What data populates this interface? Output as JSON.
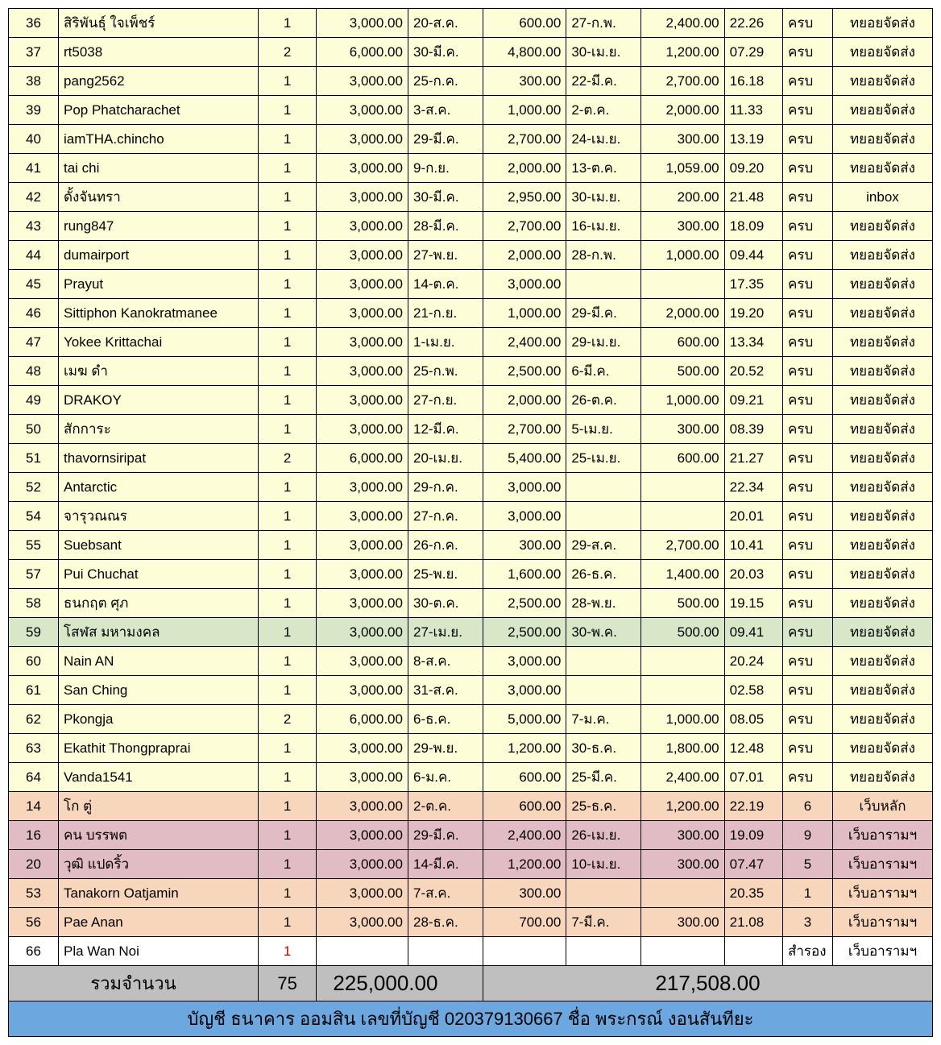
{
  "rows": [
    {
      "num": "36",
      "name": "สิริพันธุ์ ใจเพ็ชร์",
      "qty": "1",
      "amt1": "3,000.00",
      "date1": "20-ส.ค.",
      "amt2": "600.00",
      "date2": "27-ก.พ.",
      "amt3": "2,400.00",
      "time": "22.26",
      "status": "ครบ",
      "note": "ทยอยจัดส่ง",
      "bg": "bg-yellow"
    },
    {
      "num": "37",
      "name": "rt5038",
      "qty": "2",
      "amt1": "6,000.00",
      "date1": "30-มี.ค.",
      "amt2": "4,800.00",
      "date2": "30-เม.ย.",
      "amt3": "1,200.00",
      "time": "07.29",
      "status": "ครบ",
      "note": "ทยอยจัดส่ง",
      "bg": "bg-yellow"
    },
    {
      "num": "38",
      "name": "pang2562",
      "qty": "1",
      "amt1": "3,000.00",
      "date1": "25-ก.ค.",
      "amt2": "300.00",
      "date2": "22-มี.ค.",
      "amt3": "2,700.00",
      "time": "16.18",
      "status": "ครบ",
      "note": "ทยอยจัดส่ง",
      "bg": "bg-yellow"
    },
    {
      "num": "39",
      "name": "Pop Phatcharachet",
      "qty": "1",
      "amt1": "3,000.00",
      "date1": "3-ส.ค.",
      "amt2": "1,000.00",
      "date2": "2-ต.ค.",
      "amt3": "2,000.00",
      "time": "11.33",
      "status": "ครบ",
      "note": "ทยอยจัดส่ง",
      "bg": "bg-yellow"
    },
    {
      "num": "40",
      "name": "iamTHA.chincho",
      "qty": "1",
      "amt1": "3,000.00",
      "date1": "29-มี.ค.",
      "amt2": "2,700.00",
      "date2": "24-เม.ย.",
      "amt3": "300.00",
      "time": "13.19",
      "status": "ครบ",
      "note": "ทยอยจัดส่ง",
      "bg": "bg-yellow"
    },
    {
      "num": "41",
      "name": "tai chi",
      "qty": "1",
      "amt1": "3,000.00",
      "date1": "9-ก.ย.",
      "amt2": "2,000.00",
      "date2": "13-ต.ค.",
      "amt3": "1,059.00",
      "time": "09.20",
      "status": "ครบ",
      "note": "ทยอยจัดส่ง",
      "bg": "bg-yellow"
    },
    {
      "num": "42",
      "name": "ดั้งจันทรา",
      "qty": "1",
      "amt1": "3,000.00",
      "date1": "30-มี.ค.",
      "amt2": "2,950.00",
      "date2": "30-เม.ย.",
      "amt3": "200.00",
      "time": "21.48",
      "status": "ครบ",
      "note": "inbox",
      "bg": "bg-yellow"
    },
    {
      "num": "43",
      "name": "rung847",
      "qty": "1",
      "amt1": "3,000.00",
      "date1": "28-มี.ค.",
      "amt2": "2,700.00",
      "date2": "16-เม.ย.",
      "amt3": "300.00",
      "time": "18.09",
      "status": "ครบ",
      "note": "ทยอยจัดส่ง",
      "bg": "bg-yellow"
    },
    {
      "num": "44",
      "name": "dumairport",
      "qty": "1",
      "amt1": "3,000.00",
      "date1": "27-พ.ย.",
      "amt2": "2,000.00",
      "date2": "28-ก.พ.",
      "amt3": "1,000.00",
      "time": "09.44",
      "status": "ครบ",
      "note": "ทยอยจัดส่ง",
      "bg": "bg-yellow"
    },
    {
      "num": "45",
      "name": "Prayut",
      "qty": "1",
      "amt1": "3,000.00",
      "date1": "14-ต.ค.",
      "amt2": "3,000.00",
      "date2": "",
      "amt3": "",
      "time": "17.35",
      "status": "ครบ",
      "note": "ทยอยจัดส่ง",
      "bg": "bg-yellow"
    },
    {
      "num": "46",
      "name": "Sittiphon Kanokratmanee",
      "qty": "1",
      "amt1": "3,000.00",
      "date1": "21-ก.ย.",
      "amt2": "1,000.00",
      "date2": "29-มี.ค.",
      "amt3": "2,000.00",
      "time": "19.20",
      "status": "ครบ",
      "note": "ทยอยจัดส่ง",
      "bg": "bg-yellow"
    },
    {
      "num": "47",
      "name": "Yokee Krittachai",
      "qty": "1",
      "amt1": "3,000.00",
      "date1": "1-เม.ย.",
      "amt2": "2,400.00",
      "date2": "29-เม.ย.",
      "amt3": "600.00",
      "time": "13.34",
      "status": "ครบ",
      "note": "ทยอยจัดส่ง",
      "bg": "bg-yellow"
    },
    {
      "num": "48",
      "name": "เมฆ ดำ",
      "qty": "1",
      "amt1": "3,000.00",
      "date1": "25-ก.พ.",
      "amt2": "2,500.00",
      "date2": "6-มี.ค.",
      "amt3": "500.00",
      "time": "20.52",
      "status": "ครบ",
      "note": "ทยอยจัดส่ง",
      "bg": "bg-yellow"
    },
    {
      "num": "49",
      "name": "DRAKOY",
      "qty": "1",
      "amt1": "3,000.00",
      "date1": "27-ก.ย.",
      "amt2": "2,000.00",
      "date2": "26-ต.ค.",
      "amt3": "1,000.00",
      "time": "09.21",
      "status": "ครบ",
      "note": "ทยอยจัดส่ง",
      "bg": "bg-yellow"
    },
    {
      "num": "50",
      "name": "สักการะ",
      "qty": "1",
      "amt1": "3,000.00",
      "date1": "12-มี.ค.",
      "amt2": "2,700.00",
      "date2": "5-เม.ย.",
      "amt3": "300.00",
      "time": "08.39",
      "status": "ครบ",
      "note": "ทยอยจัดส่ง",
      "bg": "bg-yellow"
    },
    {
      "num": "51",
      "name": "thavornsiripat",
      "qty": "2",
      "amt1": "6,000.00",
      "date1": "20-เม.ย.",
      "amt2": "5,400.00",
      "date2": "25-เม.ย.",
      "amt3": "600.00",
      "time": "21.27",
      "status": "ครบ",
      "note": "ทยอยจัดส่ง",
      "bg": "bg-yellow"
    },
    {
      "num": "52",
      "name": "Antarctic",
      "qty": "1",
      "amt1": "3,000.00",
      "date1": "29-ก.ค.",
      "amt2": "3,000.00",
      "date2": "",
      "amt3": "",
      "time": "22.34",
      "status": "ครบ",
      "note": "ทยอยจัดส่ง",
      "bg": "bg-yellow"
    },
    {
      "num": "54",
      "name": "จารุวณณร",
      "qty": "1",
      "amt1": "3,000.00",
      "date1": "27-ก.ค.",
      "amt2": "3,000.00",
      "date2": "",
      "amt3": "",
      "time": "20.01",
      "status": "ครบ",
      "note": "ทยอยจัดส่ง",
      "bg": "bg-yellow"
    },
    {
      "num": "55",
      "name": "Suebsant",
      "qty": "1",
      "amt1": "3,000.00",
      "date1": "26-ก.ค.",
      "amt2": "300.00",
      "date2": "29-ส.ค.",
      "amt3": "2,700.00",
      "time": "10.41",
      "status": "ครบ",
      "note": "ทยอยจัดส่ง",
      "bg": "bg-yellow"
    },
    {
      "num": "57",
      "name": "Pui Chuchat",
      "qty": "1",
      "amt1": "3,000.00",
      "date1": "25-พ.ย.",
      "amt2": "1,600.00",
      "date2": "26-ธ.ค.",
      "amt3": "1,400.00",
      "time": "20.03",
      "status": "ครบ",
      "note": "ทยอยจัดส่ง",
      "bg": "bg-yellow"
    },
    {
      "num": "58",
      "name": "ธนกฤต ศุภ",
      "qty": "1",
      "amt1": "3,000.00",
      "date1": "30-ต.ค.",
      "amt2": "2,500.00",
      "date2": "28-พ.ย.",
      "amt3": "500.00",
      "time": "19.15",
      "status": "ครบ",
      "note": "ทยอยจัดส่ง",
      "bg": "bg-yellow"
    },
    {
      "num": "59",
      "name": "โสฬส มหามงคล",
      "qty": "1",
      "amt1": "3,000.00",
      "date1": "27-เม.ย.",
      "amt2": "2,500.00",
      "date2": "30-พ.ค.",
      "amt3": "500.00",
      "time": "09.41",
      "status": "ครบ",
      "note": "ทยอยจัดส่ง",
      "bg": "bg-green"
    },
    {
      "num": "60",
      "name": "Nain AN",
      "qty": "1",
      "amt1": "3,000.00",
      "date1": "8-ส.ค.",
      "amt2": "3,000.00",
      "date2": "",
      "amt3": "",
      "time": "20.24",
      "status": "ครบ",
      "note": "ทยอยจัดส่ง",
      "bg": "bg-yellow"
    },
    {
      "num": "61",
      "name": "San Ching",
      "qty": "1",
      "amt1": "3,000.00",
      "date1": "31-ส.ค.",
      "amt2": "3,000.00",
      "date2": "",
      "amt3": "",
      "time": "02.58",
      "status": "ครบ",
      "note": "ทยอยจัดส่ง",
      "bg": "bg-yellow"
    },
    {
      "num": "62",
      "name": "Pkongja",
      "qty": "2",
      "amt1": "6,000.00",
      "date1": "6-ธ.ค.",
      "amt2": "5,000.00",
      "date2": "7-ม.ค.",
      "amt3": "1,000.00",
      "time": "08.05",
      "status": "ครบ",
      "note": "ทยอยจัดส่ง",
      "bg": "bg-yellow"
    },
    {
      "num": "63",
      "name": "Ekathit Thongpraprai",
      "qty": "1",
      "amt1": "3,000.00",
      "date1": "29-พ.ย.",
      "amt2": "1,200.00",
      "date2": "30-ธ.ค.",
      "amt3": "1,800.00",
      "time": "12.48",
      "status": "ครบ",
      "note": "ทยอยจัดส่ง",
      "bg": "bg-yellow"
    },
    {
      "num": "64",
      "name": "Vanda1541",
      "qty": "1",
      "amt1": "3,000.00",
      "date1": "6-ม.ค.",
      "amt2": "600.00",
      "date2": "25-มี.ค.",
      "amt3": "2,400.00",
      "time": "07.01",
      "status": "ครบ",
      "note": "ทยอยจัดส่ง",
      "bg": "bg-yellow"
    },
    {
      "num": "14",
      "name": "โก ตู่",
      "qty": "1",
      "amt1": "3,000.00",
      "date1": "2-ต.ค.",
      "amt2": "600.00",
      "date2": "25-ธ.ค.",
      "amt3": "1,200.00",
      "time": "22.19",
      "status": "6",
      "note": "เว็บหลัก",
      "bg": "bg-orange",
      "statusCenter": true
    },
    {
      "num": "16",
      "name": "คน บรรพต",
      "qty": "1",
      "amt1": "3,000.00",
      "date1": "29-มี.ค.",
      "amt2": "2,400.00",
      "date2": "26-เม.ย.",
      "amt3": "300.00",
      "time": "19.09",
      "status": "9",
      "note": "เว็บอารามฯ",
      "bg": "bg-pink",
      "statusCenter": true
    },
    {
      "num": "20",
      "name": "วุฒิ แปดริ้ว",
      "qty": "1",
      "amt1": "3,000.00",
      "date1": "14-มี.ค.",
      "amt2": "1,200.00",
      "date2": "10-เม.ย.",
      "amt3": "300.00",
      "time": "07.47",
      "status": "5",
      "note": "เว็บอารามฯ",
      "bg": "bg-pink",
      "statusCenter": true
    },
    {
      "num": "53",
      "name": "Tanakorn Oatjamin",
      "qty": "1",
      "amt1": "3,000.00",
      "date1": "7-ส.ค.",
      "amt2": "300.00",
      "date2": "",
      "amt3": "",
      "time": "20.35",
      "status": "1",
      "note": "เว็บอารามฯ",
      "bg": "bg-orange",
      "statusCenter": true
    },
    {
      "num": "56",
      "name": "Pae Anan",
      "qty": "1",
      "amt1": "3,000.00",
      "date1": "28-ธ.ค.",
      "amt2": "700.00",
      "date2": "7-มี.ค.",
      "amt3": "300.00",
      "time": "21.08",
      "status": "3",
      "note": "เว็บอารามฯ",
      "bg": "bg-orange",
      "statusCenter": true
    },
    {
      "num": "66",
      "name": "Pla Wan Noi",
      "qty": "1",
      "amt1": "",
      "date1": "",
      "amt2": "",
      "date2": "",
      "amt3": "",
      "time": "",
      "status": "สำรอง",
      "note": "เว็บอารามฯ",
      "bg": "bg-white",
      "qtyRed": true
    }
  ],
  "summary": {
    "label": "รวมจำนวน",
    "qty": "75",
    "total1": "225,000.00",
    "total2": "217,508.00"
  },
  "footer": "บัญชี ธนาคาร ออมสิน เลขที่บัญชี 020379130667 ชื่อ พระกรณ์ งอนสันทียะ"
}
